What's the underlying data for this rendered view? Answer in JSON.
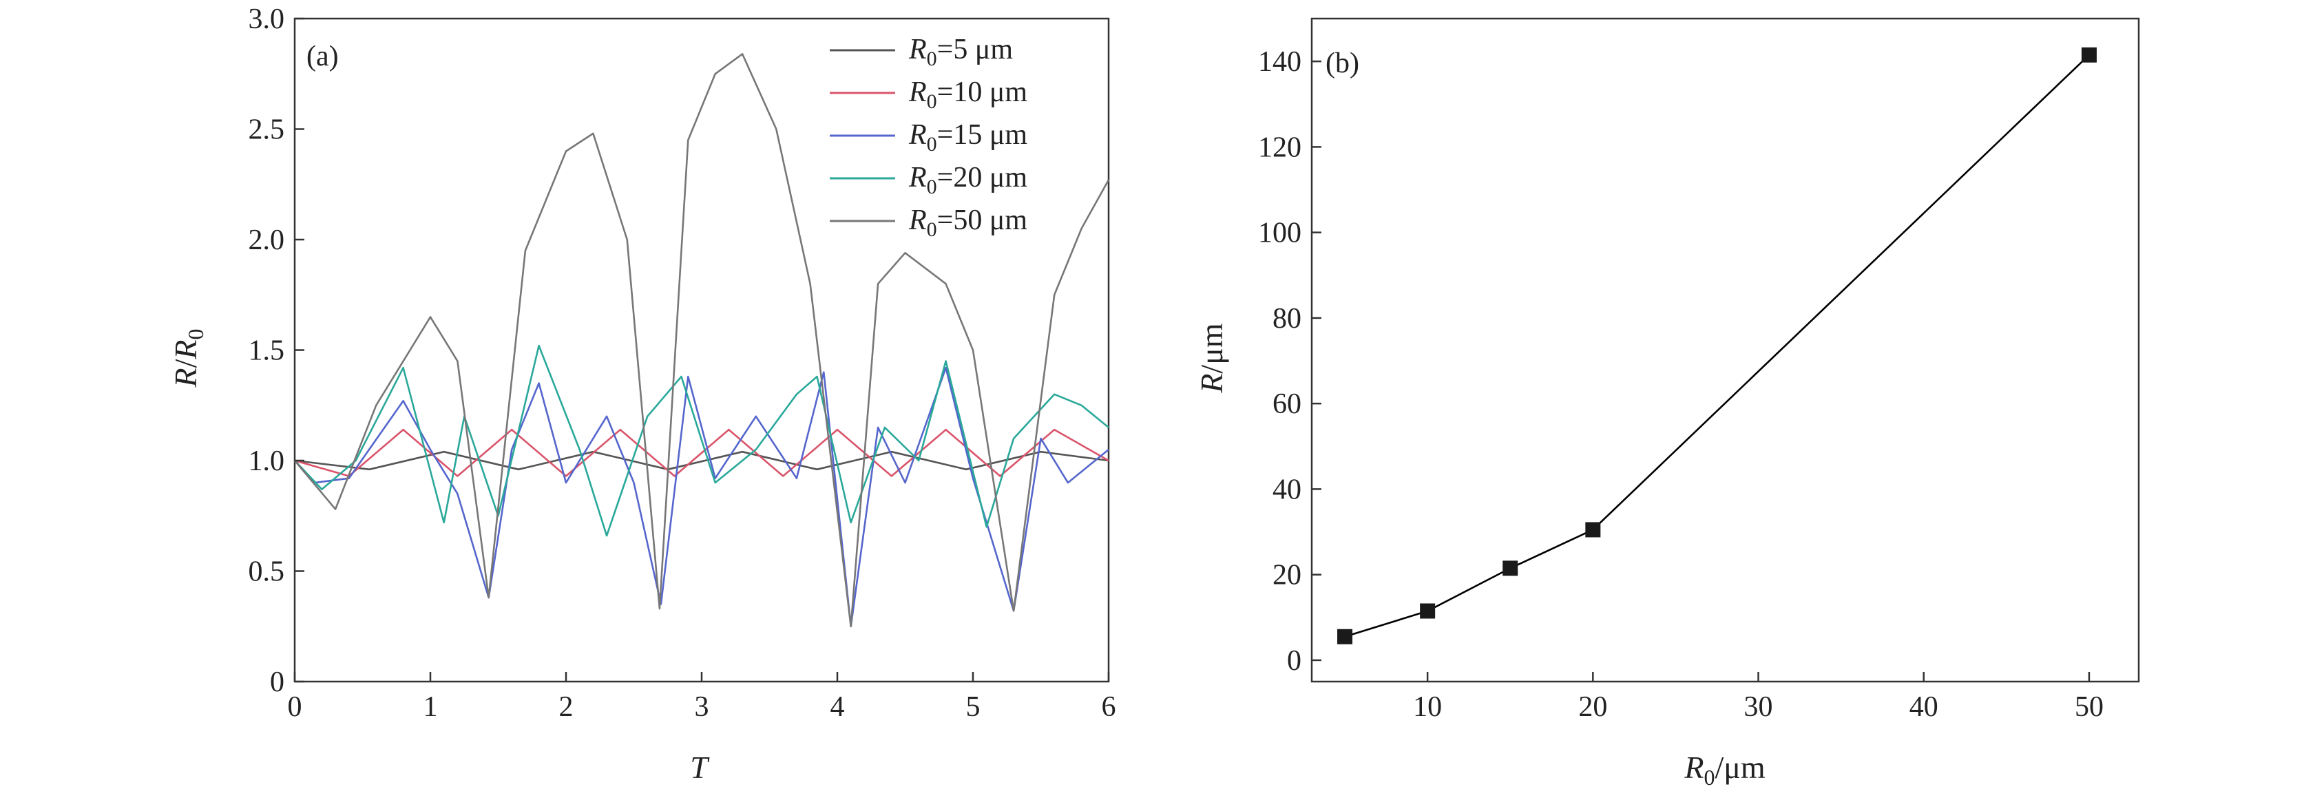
{
  "chart_data": [
    {
      "panel": "(a)",
      "type": "line",
      "xlabel": "T",
      "ylabel": "R/R0",
      "xlim": [
        0,
        6
      ],
      "ylim": [
        0,
        3.0
      ],
      "xticks": [
        "0",
        "1",
        "2",
        "3",
        "4",
        "5",
        "6"
      ],
      "yticks": [
        "0",
        "0.5",
        "1.0",
        "1.5",
        "2.0",
        "2.5",
        "3.0"
      ],
      "grid": false,
      "legend_placement": "top-right",
      "series": [
        {
          "name": "R0=5 μm",
          "color": "#555555",
          "x": [
            0,
            0.55,
            1.1,
            1.65,
            2.2,
            2.75,
            3.3,
            3.85,
            4.4,
            4.95,
            5.5,
            6.0
          ],
          "y": [
            1.0,
            0.96,
            1.04,
            0.96,
            1.04,
            0.96,
            1.04,
            0.96,
            1.04,
            0.96,
            1.04,
            1.0
          ]
        },
        {
          "name": "R0=10 μm",
          "color": "#d9546a",
          "x": [
            0,
            0.4,
            0.8,
            1.2,
            1.6,
            2.0,
            2.4,
            2.8,
            3.2,
            3.6,
            4.0,
            4.4,
            4.8,
            5.2,
            5.6,
            6.0
          ],
          "y": [
            1.0,
            0.93,
            1.14,
            0.93,
            1.14,
            0.93,
            1.14,
            0.93,
            1.14,
            0.93,
            1.14,
            0.93,
            1.14,
            0.93,
            1.14,
            1.0
          ]
        },
        {
          "name": "R0=15 μm",
          "color": "#5566cc",
          "x": [
            0,
            0.15,
            0.4,
            0.8,
            1.0,
            1.2,
            1.43,
            1.6,
            1.8,
            2.0,
            2.3,
            2.5,
            2.7,
            2.9,
            3.1,
            3.4,
            3.7,
            3.9,
            4.1,
            4.3,
            4.5,
            4.8,
            5.0,
            5.3,
            5.5,
            5.7,
            6.0
          ],
          "y": [
            1.0,
            0.9,
            0.92,
            1.27,
            1.05,
            0.85,
            0.38,
            1.05,
            1.35,
            0.9,
            1.2,
            0.9,
            0.35,
            1.38,
            0.92,
            1.2,
            0.92,
            1.4,
            0.25,
            1.15,
            0.9,
            1.42,
            0.92,
            0.32,
            1.1,
            0.9,
            1.05
          ]
        },
        {
          "name": "R0=20 μm",
          "color": "#2aa89a",
          "x": [
            0,
            0.2,
            0.45,
            0.8,
            1.1,
            1.25,
            1.5,
            1.8,
            2.1,
            2.3,
            2.6,
            2.85,
            3.1,
            3.4,
            3.7,
            3.85,
            4.1,
            4.35,
            4.6,
            4.8,
            5.1,
            5.3,
            5.6,
            5.8,
            6.0
          ],
          "y": [
            1.0,
            0.87,
            1.0,
            1.42,
            0.72,
            1.2,
            0.75,
            1.52,
            1.05,
            0.66,
            1.2,
            1.38,
            0.9,
            1.05,
            1.3,
            1.38,
            0.72,
            1.15,
            1.0,
            1.45,
            0.7,
            1.1,
            1.3,
            1.25,
            1.15
          ]
        },
        {
          "name": "R0=50 μm",
          "color": "#777777",
          "x": [
            0,
            0.3,
            0.6,
            1.0,
            1.2,
            1.43,
            1.7,
            2.0,
            2.2,
            2.45,
            2.69,
            2.9,
            3.1,
            3.3,
            3.55,
            3.8,
            4.1,
            4.3,
            4.5,
            4.8,
            5.0,
            5.3,
            5.6,
            5.8,
            6.0
          ],
          "y": [
            1.0,
            0.78,
            1.25,
            1.65,
            1.45,
            0.38,
            1.95,
            2.4,
            2.48,
            2.0,
            0.33,
            2.45,
            2.75,
            2.84,
            2.5,
            1.8,
            0.25,
            1.8,
            1.94,
            1.8,
            1.5,
            0.32,
            1.75,
            2.05,
            2.27
          ]
        }
      ]
    },
    {
      "panel": "(b)",
      "type": "line",
      "xlabel": "R0/μm",
      "ylabel": "R/μm",
      "xlim": [
        3,
        53
      ],
      "ylim": [
        -5,
        150
      ],
      "xticks": [
        "10",
        "20",
        "30",
        "40",
        "50"
      ],
      "yticks": [
        "0",
        "20",
        "40",
        "60",
        "80",
        "100",
        "120",
        "140"
      ],
      "grid": false,
      "marker": "square",
      "color": "#000000",
      "x": [
        5,
        10,
        15,
        20,
        50
      ],
      "y": [
        5.5,
        11.5,
        21.5,
        30.5,
        141.5
      ]
    }
  ],
  "panel_a": {
    "label": "(a)",
    "ylabel_main": "R",
    "ylabel_sep": "/",
    "ylabel_denom": "R",
    "ylabel_sub": "0",
    "xlabel_main": "T",
    "legend": [
      {
        "prefix": "R",
        "sub": "0",
        "suffix": "=5 μm"
      },
      {
        "prefix": "R",
        "sub": "0",
        "suffix": "=10 μm"
      },
      {
        "prefix": "R",
        "sub": "0",
        "suffix": "=15 μm"
      },
      {
        "prefix": "R",
        "sub": "0",
        "suffix": "=20 μm"
      },
      {
        "prefix": "R",
        "sub": "0",
        "suffix": "=50 μm"
      }
    ]
  },
  "panel_b": {
    "label": "(b)",
    "ylabel_main": "R",
    "ylabel_unit": "/μm",
    "xlabel_main": "R",
    "xlabel_sub": "0",
    "xlabel_unit": "/μm"
  }
}
